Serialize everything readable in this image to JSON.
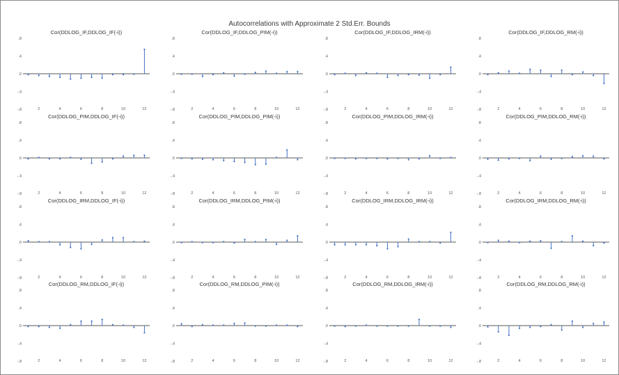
{
  "chart_data": {
    "type": "bar",
    "title": "Autocorrelations with Approximate 2 Std.Err. Bounds",
    "lags": [
      1,
      2,
      3,
      4,
      5,
      6,
      7,
      8,
      9,
      10,
      11,
      12
    ],
    "ylim": [
      -0.8,
      0.8
    ],
    "yticks": [
      ".8",
      ".4",
      ".0",
      "-.4",
      "-.8"
    ],
    "xticks": [
      "2",
      "4",
      "6",
      "8",
      "10",
      "12"
    ],
    "colors": {
      "spike": "#4472c4",
      "zero_line": "#1f1f1f"
    },
    "panels": [
      {
        "title": "Cor(DDLOG_IF,DDLOG_IF(-i))",
        "values": [
          -0.02,
          -0.04,
          -0.06,
          -0.08,
          -0.12,
          -0.1,
          -0.08,
          -0.1,
          -0.02,
          -0.02,
          -0.01,
          0.55
        ]
      },
      {
        "title": "Cor(DDLOG_IF,DDLOG_PIM(-i))",
        "values": [
          -0.01,
          -0.01,
          -0.06,
          -0.02,
          0.02,
          -0.05,
          -0.01,
          0.03,
          0.06,
          0.01,
          0.05,
          0.05
        ]
      },
      {
        "title": "Cor(DDLOG_IF,DDLOG_IRM(-i))",
        "values": [
          -0.02,
          0.01,
          -0.04,
          0.02,
          0.01,
          -0.08,
          -0.04,
          -0.02,
          -0.03,
          -0.1,
          -0.02,
          0.15
        ]
      },
      {
        "title": "Cor(DDLOG_IF,DDLOG_RM(-i))",
        "values": [
          -0.02,
          0.02,
          0.06,
          0.01,
          0.1,
          0.08,
          -0.06,
          0.08,
          -0.02,
          0.04,
          -0.04,
          -0.22
        ]
      },
      {
        "title": "Cor(DDLOG_PIM,DDLOG_IF(-i))",
        "values": [
          -0.02,
          0.01,
          -0.02,
          -0.02,
          0.01,
          -0.03,
          -0.12,
          -0.09,
          -0.02,
          0.04,
          0.06,
          0.06
        ]
      },
      {
        "title": "Cor(DDLOG_PIM,DDLOG_PIM(-i))",
        "values": [
          -0.01,
          -0.02,
          -0.03,
          -0.04,
          -0.06,
          -0.08,
          -0.1,
          -0.15,
          -0.14,
          0.01,
          0.18,
          -0.04
        ]
      },
      {
        "title": "Cor(DDLOG_PIM,DDLOG_IRM(-i))",
        "values": [
          -0.01,
          -0.01,
          -0.02,
          -0.01,
          -0.01,
          -0.02,
          -0.01,
          -0.04,
          -0.02,
          0.05,
          -0.01,
          0.01
        ]
      },
      {
        "title": "Cor(DDLOG_PIM,DDLOG_RM(-i))",
        "values": [
          -0.03,
          -0.05,
          -0.02,
          -0.01,
          -0.06,
          0.04,
          -0.03,
          -0.01,
          0.03,
          0.05,
          0.04,
          -0.02
        ]
      },
      {
        "title": "Cor(DDLOG_IRM,DDLOG_IF(-i))",
        "values": [
          0.03,
          0.01,
          0.01,
          -0.06,
          -0.12,
          -0.15,
          -0.05,
          0.05,
          0.1,
          0.1,
          0.01,
          0.02
        ]
      },
      {
        "title": "Cor(DDLOG_IRM,DDLOG_PIM(-i))",
        "values": [
          -0.01,
          0.01,
          -0.01,
          -0.01,
          0.01,
          -0.02,
          0.06,
          0.01,
          0.06,
          -0.05,
          0.04,
          0.14
        ]
      },
      {
        "title": "Cor(DDLOG_IRM,DDLOG_IRM(-i))",
        "values": [
          -0.06,
          -0.06,
          -0.06,
          -0.06,
          -0.08,
          -0.15,
          -0.1,
          0.07,
          0.01,
          0.01,
          -0.02,
          0.22
        ]
      },
      {
        "title": "Cor(DDLOG_IRM,DDLOG_RM(-i))",
        "values": [
          -0.01,
          0.04,
          0.02,
          -0.01,
          0.02,
          0.03,
          -0.14,
          0.01,
          0.14,
          0.02,
          -0.08,
          -0.02
        ]
      },
      {
        "title": "Cor(DDLOG_RM,DDLOG_IF(-i))",
        "values": [
          -0.02,
          -0.02,
          -0.04,
          -0.06,
          0.02,
          0.1,
          0.1,
          0.14,
          0.02,
          0.01,
          -0.04,
          -0.16
        ]
      },
      {
        "title": "Cor(DDLOG_RM,DDLOG_PIM(-i))",
        "values": [
          0.04,
          -0.02,
          0.02,
          0.01,
          0.01,
          0.05,
          0.06,
          -0.01,
          -0.01,
          0.01,
          0.01,
          -0.02
        ]
      },
      {
        "title": "Cor(DDLOG_RM,DDLOG_IRM(-i))",
        "values": [
          -0.01,
          -0.02,
          -0.01,
          0.01,
          -0.01,
          -0.01,
          -0.01,
          -0.01,
          0.14,
          -0.01,
          -0.01,
          -0.04
        ]
      },
      {
        "title": "Cor(DDLOG_RM,DDLOG_RM(-i))",
        "values": [
          -0.03,
          -0.14,
          -0.22,
          -0.06,
          -0.04,
          -0.02,
          0.02,
          -0.1,
          0.1,
          -0.04,
          0.05,
          0.08
        ]
      }
    ]
  }
}
